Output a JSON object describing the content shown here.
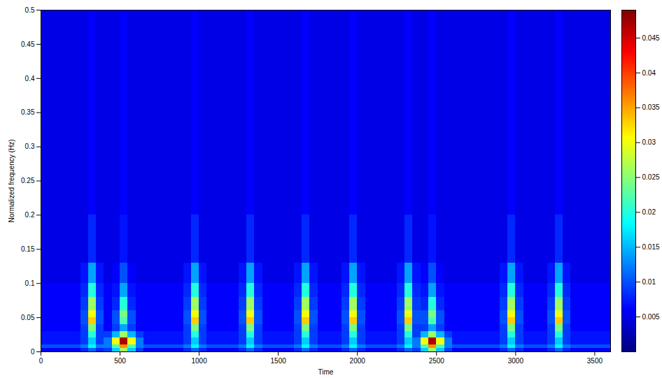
{
  "chart_data": {
    "type": "heatmap",
    "xlabel": "Time",
    "ylabel": "Normalized frequency (Hz)",
    "xlim": [
      0,
      3600
    ],
    "ylim": [
      0,
      0.5
    ],
    "xticks": [
      0,
      500,
      1000,
      1500,
      2000,
      2500,
      3000,
      3500
    ],
    "yticks": [
      0,
      0.05,
      0.1,
      0.15,
      0.2,
      0.25,
      0.3,
      0.35,
      0.4,
      0.45,
      0.5
    ],
    "x_edges": [
      0,
      50,
      100,
      150,
      200,
      250,
      300,
      350,
      400,
      450,
      500,
      550,
      600,
      650,
      700,
      750,
      800,
      850,
      900,
      950,
      1000,
      1050,
      1100,
      1150,
      1200,
      1250,
      1300,
      1350,
      1400,
      1450,
      1500,
      1550,
      1600,
      1650,
      1700,
      1750,
      1800,
      1850,
      1900,
      1950,
      2000,
      2050,
      2100,
      2150,
      2200,
      2250,
      2300,
      2350,
      2400,
      2450,
      2500,
      2550,
      2600,
      2650,
      2700,
      2750,
      2800,
      2850,
      2900,
      2950,
      3000,
      3050,
      3100,
      3150,
      3200,
      3250,
      3300,
      3350,
      3400,
      3450,
      3500,
      3550,
      3600
    ],
    "y_edges": [
      0,
      0.005,
      0.01,
      0.02,
      0.03,
      0.04,
      0.05,
      0.06,
      0.08,
      0.1,
      0.13,
      0.2,
      0.3,
      0.5
    ],
    "values": [
      [
        0.006,
        0.006,
        0.006,
        0.006,
        0.006,
        0.008,
        0.011,
        0.008,
        0.009,
        0.016,
        0.026,
        0.016,
        0.009,
        0.006,
        0.006,
        0.006,
        0.006,
        0.006,
        0.008,
        0.011,
        0.008,
        0.006,
        0.006,
        0.006,
        0.006,
        0.008,
        0.011,
        0.008,
        0.006,
        0.006,
        0.006,
        0.006,
        0.008,
        0.011,
        0.008,
        0.006,
        0.006,
        0.006,
        0.008,
        0.011,
        0.008,
        0.006,
        0.006,
        0.006,
        0.006,
        0.008,
        0.011,
        0.009,
        0.016,
        0.026,
        0.016,
        0.009,
        0.006,
        0.006,
        0.006,
        0.006,
        0.006,
        0.006,
        0.008,
        0.011,
        0.008,
        0.006,
        0.006,
        0.006,
        0.008,
        0.011,
        0.008,
        0.006,
        0.006,
        0.006,
        0.006,
        0.006
      ],
      [
        0.01,
        0.01,
        0.01,
        0.01,
        0.01,
        0.012,
        0.018,
        0.012,
        0.012,
        0.022,
        0.036,
        0.022,
        0.012,
        0.01,
        0.01,
        0.01,
        0.01,
        0.01,
        0.012,
        0.018,
        0.012,
        0.01,
        0.01,
        0.01,
        0.01,
        0.012,
        0.018,
        0.012,
        0.01,
        0.01,
        0.01,
        0.01,
        0.012,
        0.018,
        0.012,
        0.01,
        0.01,
        0.01,
        0.012,
        0.018,
        0.012,
        0.01,
        0.01,
        0.01,
        0.01,
        0.012,
        0.018,
        0.012,
        0.022,
        0.036,
        0.022,
        0.012,
        0.01,
        0.01,
        0.01,
        0.01,
        0.01,
        0.01,
        0.012,
        0.018,
        0.012,
        0.01,
        0.01,
        0.01,
        0.012,
        0.018,
        0.012,
        0.01,
        0.01,
        0.01,
        0.01,
        0.01
      ],
      [
        0.007,
        0.007,
        0.007,
        0.007,
        0.007,
        0.009,
        0.016,
        0.009,
        0.012,
        0.03,
        0.047,
        0.03,
        0.012,
        0.007,
        0.007,
        0.007,
        0.007,
        0.007,
        0.009,
        0.016,
        0.009,
        0.007,
        0.007,
        0.007,
        0.007,
        0.009,
        0.016,
        0.009,
        0.007,
        0.007,
        0.007,
        0.007,
        0.009,
        0.016,
        0.009,
        0.007,
        0.007,
        0.007,
        0.009,
        0.016,
        0.009,
        0.007,
        0.007,
        0.007,
        0.007,
        0.009,
        0.016,
        0.012,
        0.03,
        0.047,
        0.03,
        0.012,
        0.007,
        0.007,
        0.007,
        0.007,
        0.007,
        0.007,
        0.009,
        0.016,
        0.009,
        0.007,
        0.007,
        0.007,
        0.009,
        0.016,
        0.009,
        0.007,
        0.007,
        0.007,
        0.007,
        0.007
      ],
      [
        0.007,
        0.007,
        0.007,
        0.007,
        0.007,
        0.009,
        0.02,
        0.009,
        0.009,
        0.015,
        0.026,
        0.015,
        0.009,
        0.007,
        0.007,
        0.007,
        0.007,
        0.007,
        0.009,
        0.02,
        0.009,
        0.007,
        0.007,
        0.007,
        0.007,
        0.009,
        0.02,
        0.009,
        0.007,
        0.007,
        0.007,
        0.007,
        0.009,
        0.02,
        0.009,
        0.007,
        0.007,
        0.007,
        0.009,
        0.02,
        0.009,
        0.007,
        0.007,
        0.007,
        0.007,
        0.009,
        0.02,
        0.009,
        0.015,
        0.026,
        0.015,
        0.009,
        0.007,
        0.007,
        0.007,
        0.007,
        0.007,
        0.007,
        0.009,
        0.02,
        0.009,
        0.007,
        0.007,
        0.007,
        0.009,
        0.02,
        0.009,
        0.007,
        0.007,
        0.007,
        0.007,
        0.007
      ],
      [
        0.006,
        0.006,
        0.006,
        0.006,
        0.006,
        0.009,
        0.024,
        0.009,
        0.006,
        0.009,
        0.014,
        0.009,
        0.006,
        0.006,
        0.006,
        0.006,
        0.006,
        0.006,
        0.009,
        0.024,
        0.009,
        0.006,
        0.006,
        0.006,
        0.006,
        0.009,
        0.024,
        0.009,
        0.006,
        0.006,
        0.006,
        0.006,
        0.009,
        0.024,
        0.009,
        0.006,
        0.006,
        0.006,
        0.009,
        0.024,
        0.009,
        0.006,
        0.006,
        0.006,
        0.006,
        0.009,
        0.024,
        0.009,
        0.009,
        0.014,
        0.009,
        0.006,
        0.006,
        0.006,
        0.006,
        0.006,
        0.006,
        0.006,
        0.009,
        0.024,
        0.009,
        0.006,
        0.006,
        0.006,
        0.009,
        0.024,
        0.009,
        0.006,
        0.006,
        0.006,
        0.006,
        0.006
      ],
      [
        0.006,
        0.006,
        0.006,
        0.006,
        0.006,
        0.01,
        0.033,
        0.01,
        0.006,
        0.01,
        0.022,
        0.01,
        0.006,
        0.006,
        0.006,
        0.006,
        0.006,
        0.006,
        0.01,
        0.033,
        0.01,
        0.006,
        0.006,
        0.006,
        0.006,
        0.01,
        0.033,
        0.01,
        0.006,
        0.006,
        0.006,
        0.006,
        0.01,
        0.033,
        0.01,
        0.006,
        0.006,
        0.006,
        0.01,
        0.033,
        0.01,
        0.006,
        0.006,
        0.006,
        0.006,
        0.01,
        0.033,
        0.01,
        0.01,
        0.022,
        0.01,
        0.006,
        0.006,
        0.006,
        0.006,
        0.006,
        0.006,
        0.006,
        0.01,
        0.033,
        0.01,
        0.006,
        0.006,
        0.006,
        0.01,
        0.033,
        0.01,
        0.006,
        0.006,
        0.006,
        0.006,
        0.006
      ],
      [
        0.006,
        0.006,
        0.006,
        0.006,
        0.006,
        0.01,
        0.03,
        0.01,
        0.006,
        0.01,
        0.024,
        0.01,
        0.006,
        0.006,
        0.006,
        0.006,
        0.006,
        0.006,
        0.01,
        0.03,
        0.01,
        0.006,
        0.006,
        0.006,
        0.006,
        0.01,
        0.03,
        0.01,
        0.006,
        0.006,
        0.006,
        0.006,
        0.01,
        0.03,
        0.01,
        0.006,
        0.006,
        0.006,
        0.01,
        0.03,
        0.01,
        0.006,
        0.006,
        0.006,
        0.006,
        0.01,
        0.03,
        0.01,
        0.01,
        0.024,
        0.01,
        0.006,
        0.006,
        0.006,
        0.006,
        0.006,
        0.006,
        0.006,
        0.01,
        0.03,
        0.01,
        0.006,
        0.006,
        0.006,
        0.01,
        0.03,
        0.01,
        0.006,
        0.006,
        0.006,
        0.006,
        0.006
      ],
      [
        0.006,
        0.006,
        0.006,
        0.006,
        0.006,
        0.009,
        0.026,
        0.009,
        0.006,
        0.008,
        0.02,
        0.008,
        0.006,
        0.006,
        0.006,
        0.006,
        0.006,
        0.006,
        0.009,
        0.026,
        0.009,
        0.006,
        0.006,
        0.006,
        0.006,
        0.009,
        0.026,
        0.009,
        0.006,
        0.006,
        0.006,
        0.006,
        0.009,
        0.026,
        0.009,
        0.006,
        0.006,
        0.006,
        0.009,
        0.026,
        0.009,
        0.006,
        0.006,
        0.006,
        0.006,
        0.009,
        0.026,
        0.009,
        0.008,
        0.02,
        0.008,
        0.006,
        0.006,
        0.006,
        0.006,
        0.006,
        0.006,
        0.006,
        0.009,
        0.026,
        0.009,
        0.006,
        0.006,
        0.006,
        0.009,
        0.026,
        0.009,
        0.006,
        0.006,
        0.006,
        0.006,
        0.006
      ],
      [
        0.006,
        0.006,
        0.006,
        0.006,
        0.006,
        0.008,
        0.02,
        0.008,
        0.006,
        0.007,
        0.014,
        0.007,
        0.006,
        0.006,
        0.006,
        0.006,
        0.006,
        0.006,
        0.008,
        0.02,
        0.008,
        0.006,
        0.006,
        0.006,
        0.006,
        0.008,
        0.02,
        0.008,
        0.006,
        0.006,
        0.006,
        0.006,
        0.008,
        0.02,
        0.008,
        0.006,
        0.006,
        0.006,
        0.008,
        0.02,
        0.008,
        0.006,
        0.006,
        0.006,
        0.006,
        0.008,
        0.02,
        0.008,
        0.007,
        0.014,
        0.007,
        0.006,
        0.006,
        0.006,
        0.006,
        0.006,
        0.006,
        0.006,
        0.008,
        0.02,
        0.008,
        0.006,
        0.006,
        0.006,
        0.008,
        0.02,
        0.008,
        0.006,
        0.006,
        0.006,
        0.006,
        0.006
      ],
      [
        0.005,
        0.005,
        0.005,
        0.005,
        0.005,
        0.007,
        0.014,
        0.007,
        0.005,
        0.006,
        0.01,
        0.006,
        0.005,
        0.005,
        0.005,
        0.005,
        0.005,
        0.005,
        0.007,
        0.014,
        0.007,
        0.005,
        0.005,
        0.005,
        0.005,
        0.007,
        0.014,
        0.007,
        0.005,
        0.005,
        0.005,
        0.005,
        0.007,
        0.014,
        0.007,
        0.005,
        0.005,
        0.005,
        0.007,
        0.014,
        0.007,
        0.005,
        0.005,
        0.005,
        0.005,
        0.007,
        0.014,
        0.007,
        0.006,
        0.01,
        0.006,
        0.005,
        0.005,
        0.005,
        0.005,
        0.005,
        0.005,
        0.005,
        0.007,
        0.014,
        0.007,
        0.005,
        0.005,
        0.005,
        0.007,
        0.014,
        0.007,
        0.005,
        0.005,
        0.005,
        0.005,
        0.005
      ],
      [
        0.005,
        0.005,
        0.005,
        0.005,
        0.005,
        0.005,
        0.008,
        0.005,
        0.005,
        0.005,
        0.007,
        0.005,
        0.005,
        0.005,
        0.005,
        0.005,
        0.005,
        0.005,
        0.005,
        0.008,
        0.005,
        0.005,
        0.005,
        0.005,
        0.005,
        0.005,
        0.008,
        0.005,
        0.005,
        0.005,
        0.005,
        0.005,
        0.005,
        0.008,
        0.005,
        0.005,
        0.005,
        0.005,
        0.005,
        0.008,
        0.005,
        0.005,
        0.005,
        0.005,
        0.005,
        0.005,
        0.008,
        0.005,
        0.005,
        0.007,
        0.005,
        0.005,
        0.005,
        0.005,
        0.005,
        0.005,
        0.005,
        0.005,
        0.005,
        0.008,
        0.005,
        0.005,
        0.005,
        0.005,
        0.005,
        0.008,
        0.005,
        0.005,
        0.005,
        0.005,
        0.005,
        0.005
      ],
      [
        0.005,
        0.005,
        0.005,
        0.005,
        0.005,
        0.005,
        0.006,
        0.005,
        0.005,
        0.005,
        0.006,
        0.005,
        0.005,
        0.005,
        0.005,
        0.005,
        0.005,
        0.005,
        0.005,
        0.006,
        0.005,
        0.005,
        0.005,
        0.005,
        0.005,
        0.005,
        0.006,
        0.005,
        0.005,
        0.005,
        0.005,
        0.005,
        0.005,
        0.006,
        0.005,
        0.005,
        0.005,
        0.005,
        0.005,
        0.006,
        0.005,
        0.005,
        0.005,
        0.005,
        0.005,
        0.005,
        0.006,
        0.005,
        0.005,
        0.006,
        0.005,
        0.005,
        0.005,
        0.005,
        0.005,
        0.005,
        0.005,
        0.005,
        0.005,
        0.006,
        0.005,
        0.005,
        0.005,
        0.005,
        0.005,
        0.006,
        0.005,
        0.005,
        0.005,
        0.005,
        0.005,
        0.005
      ],
      [
        0.005,
        0.005,
        0.005,
        0.005,
        0.005,
        0.005,
        0.006,
        0.005,
        0.005,
        0.005,
        0.006,
        0.005,
        0.005,
        0.005,
        0.005,
        0.005,
        0.005,
        0.005,
        0.005,
        0.006,
        0.005,
        0.005,
        0.005,
        0.005,
        0.005,
        0.005,
        0.006,
        0.005,
        0.005,
        0.005,
        0.005,
        0.005,
        0.005,
        0.006,
        0.005,
        0.005,
        0.005,
        0.005,
        0.005,
        0.006,
        0.005,
        0.005,
        0.005,
        0.005,
        0.005,
        0.005,
        0.006,
        0.005,
        0.005,
        0.006,
        0.005,
        0.005,
        0.005,
        0.005,
        0.005,
        0.005,
        0.005,
        0.005,
        0.005,
        0.006,
        0.005,
        0.005,
        0.005,
        0.005,
        0.005,
        0.006,
        0.005,
        0.005,
        0.005,
        0.005,
        0.005,
        0.005
      ]
    ],
    "colorbar": {
      "range": [
        0,
        0.049
      ],
      "ticks": [
        0.005,
        0.01,
        0.015,
        0.02,
        0.025,
        0.03,
        0.035,
        0.04,
        0.045
      ]
    }
  }
}
